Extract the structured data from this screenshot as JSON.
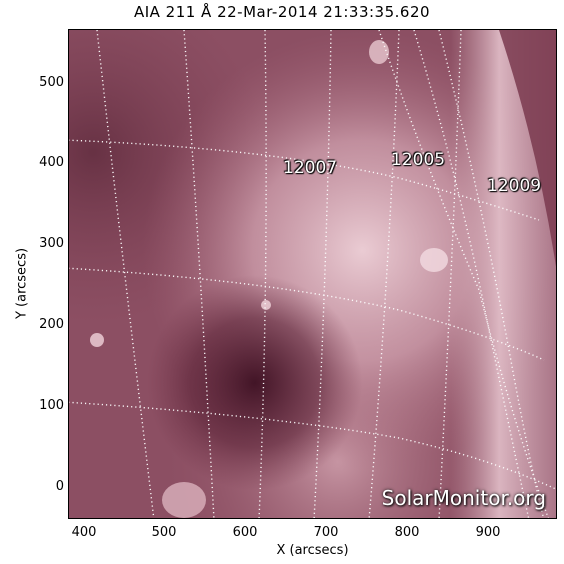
{
  "title": "AIA 211 Å 22-Mar-2014 21:33:35.620",
  "x_axis": {
    "label": "X (arcsecs)",
    "ticks": [
      "400",
      "500",
      "600",
      "700",
      "800",
      "900"
    ]
  },
  "y_axis": {
    "label": "Y (arcsecs)",
    "ticks": [
      "0",
      "100",
      "200",
      "300",
      "400",
      "500"
    ]
  },
  "active_regions": [
    "12007",
    "12005",
    "12009"
  ],
  "watermark": "SolarMonitor.org",
  "colors": {
    "background": "#8c4a5e",
    "bright_region": "#e8c6cf",
    "dark_hole": "#4a1a2c",
    "grid": "#ffffff"
  }
}
